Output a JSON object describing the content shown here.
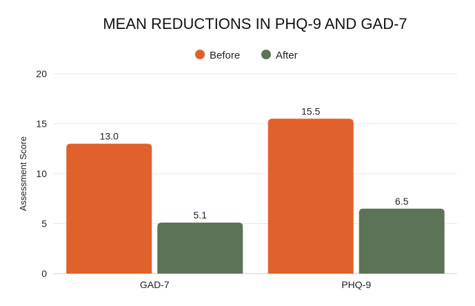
{
  "chart_data": {
    "type": "bar",
    "title": "MEAN REDUCTIONS IN PHQ-9 AND GAD-7",
    "xlabel": "",
    "ylabel": "Assessment Score",
    "categories": [
      "GAD-7",
      "PHQ-9"
    ],
    "series": [
      {
        "name": "Before",
        "values": [
          13.0,
          15.5
        ],
        "labels": [
          "13.0",
          "15.5"
        ],
        "color": "#E0612B"
      },
      {
        "name": "After",
        "values": [
          5.1,
          6.5
        ],
        "labels": [
          "5.1",
          "6.5"
        ],
        "color": "#5D7358"
      }
    ],
    "ylim": [
      0,
      20
    ],
    "yticks": [
      0,
      5,
      10,
      15,
      20
    ],
    "grid": true,
    "legend_position": "top-center"
  }
}
